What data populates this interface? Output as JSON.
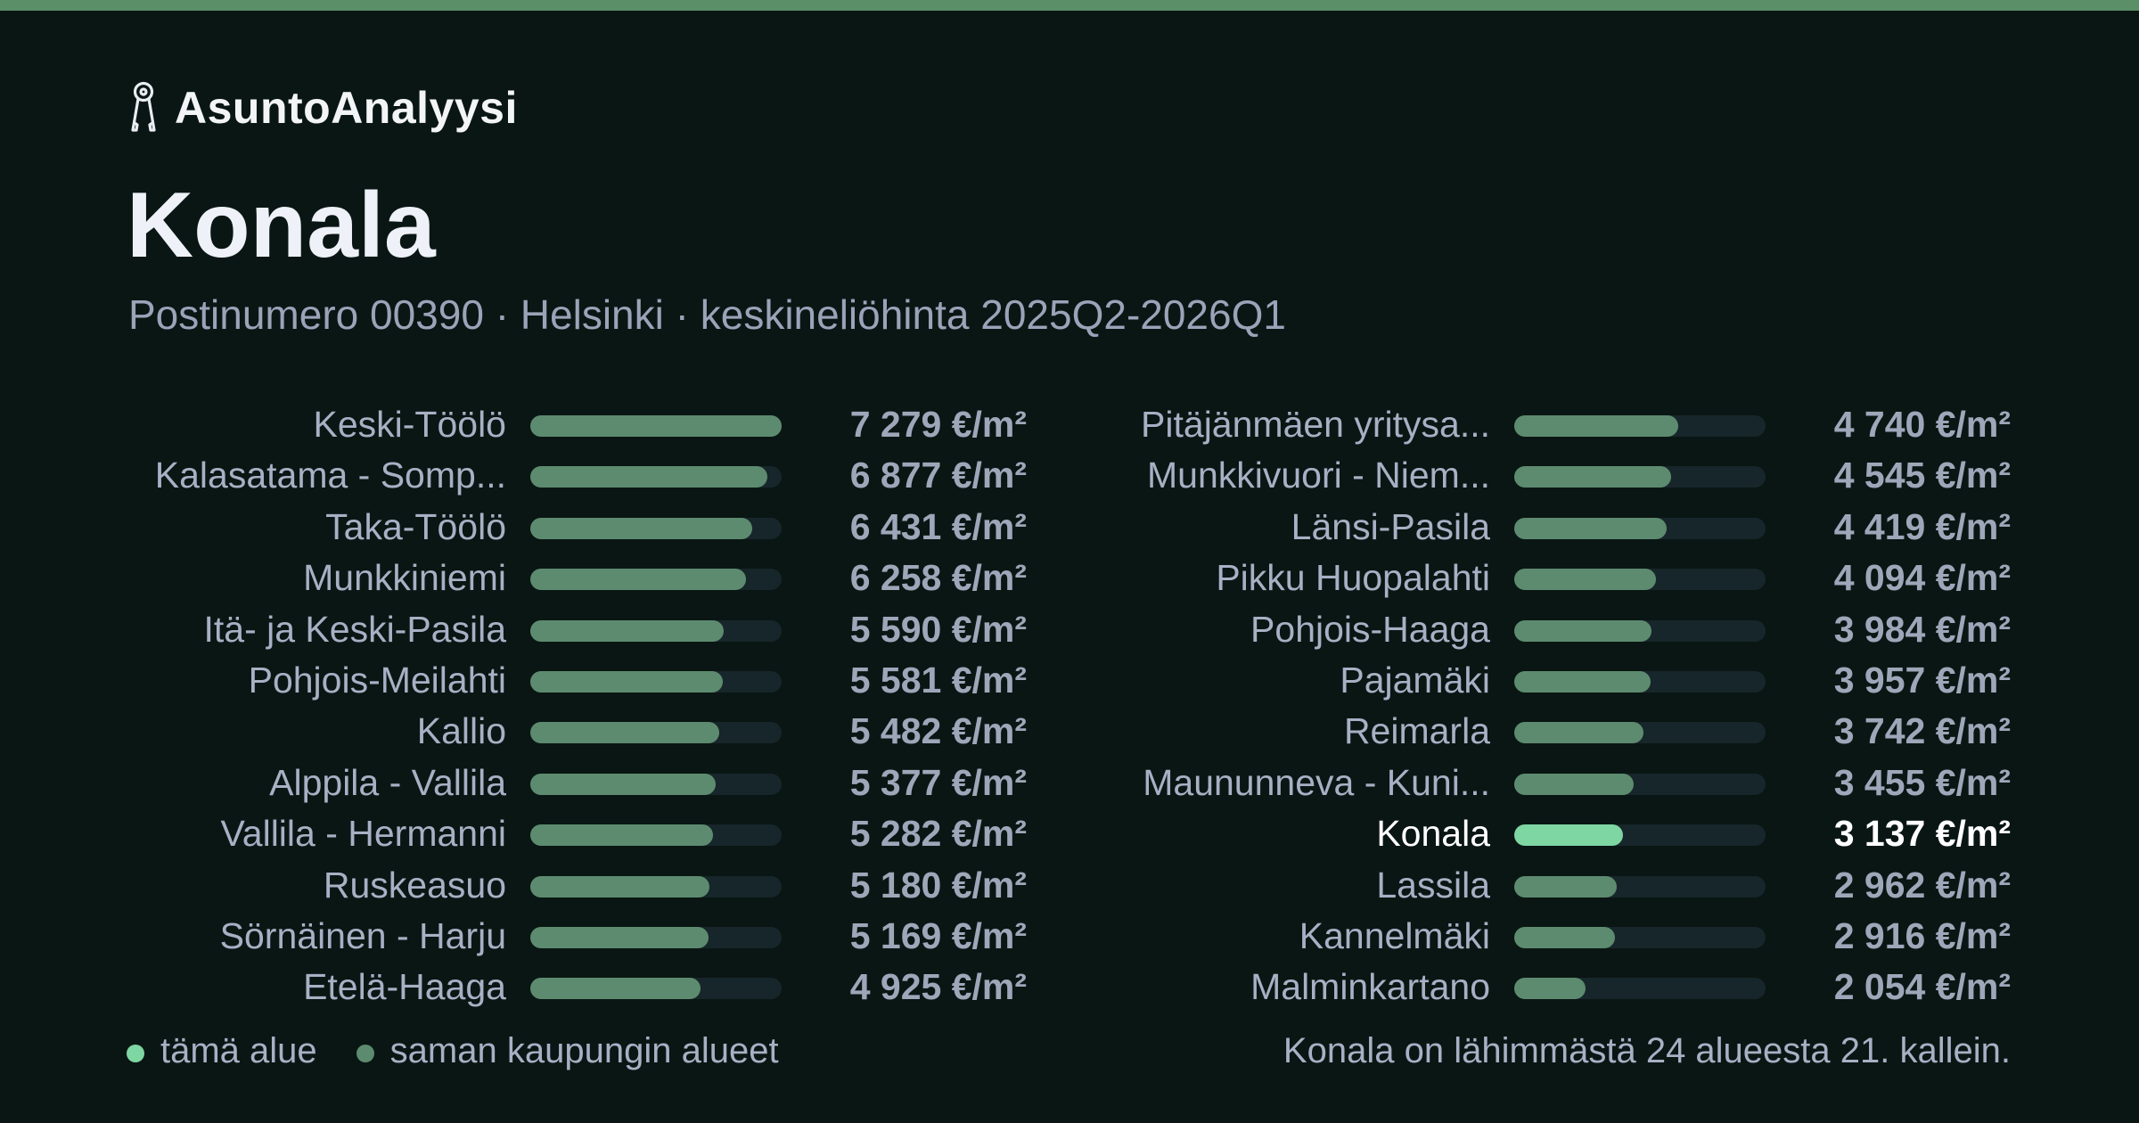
{
  "header": {
    "brand_name": "AsuntoAnalyysi",
    "brand_icon": "keys-icon",
    "title": "Konala",
    "subtitle": "Postinumero 00390 · Helsinki · keskineliöhinta 2025Q2-2026Q1"
  },
  "colors": {
    "background": "#0a1614",
    "top_stripe": "#5a8f67",
    "bar": "#5d8b6f",
    "bar_highlight": "#7ed6a2",
    "track": "#17262a"
  },
  "chart_data": {
    "type": "bar",
    "orientation": "horizontal",
    "unit": "€/m²",
    "max_value": 7279,
    "highlight": "Konala",
    "columns": [
      {
        "items": [
          {
            "label": "Keski-Töölö",
            "value": 7279,
            "value_text": "7 279 €/m²"
          },
          {
            "label": "Kalasatama - Somp...",
            "value": 6877,
            "value_text": "6 877 €/m²"
          },
          {
            "label": "Taka-Töölö",
            "value": 6431,
            "value_text": "6 431 €/m²"
          },
          {
            "label": "Munkkiniemi",
            "value": 6258,
            "value_text": "6 258 €/m²"
          },
          {
            "label": "Itä- ja Keski-Pasila",
            "value": 5590,
            "value_text": "5 590 €/m²"
          },
          {
            "label": "Pohjois-Meilahti",
            "value": 5581,
            "value_text": "5 581 €/m²"
          },
          {
            "label": "Kallio",
            "value": 5482,
            "value_text": "5 482 €/m²"
          },
          {
            "label": "Alppila - Vallila",
            "value": 5377,
            "value_text": "5 377 €/m²"
          },
          {
            "label": "Vallila - Hermanni",
            "value": 5282,
            "value_text": "5 282 €/m²"
          },
          {
            "label": "Ruskeasuo",
            "value": 5180,
            "value_text": "5 180 €/m²"
          },
          {
            "label": "Sörnäinen - Harju",
            "value": 5169,
            "value_text": "5 169 €/m²"
          },
          {
            "label": "Etelä-Haaga",
            "value": 4925,
            "value_text": "4 925 €/m²"
          }
        ]
      },
      {
        "items": [
          {
            "label": "Pitäjänmäen yritysa...",
            "value": 4740,
            "value_text": "4 740 €/m²"
          },
          {
            "label": "Munkkivuori - Niem...",
            "value": 4545,
            "value_text": "4 545 €/m²"
          },
          {
            "label": "Länsi-Pasila",
            "value": 4419,
            "value_text": "4 419 €/m²"
          },
          {
            "label": "Pikku Huopalahti",
            "value": 4094,
            "value_text": "4 094 €/m²"
          },
          {
            "label": "Pohjois-Haaga",
            "value": 3984,
            "value_text": "3 984 €/m²"
          },
          {
            "label": "Pajamäki",
            "value": 3957,
            "value_text": "3 957 €/m²"
          },
          {
            "label": "Reimarla",
            "value": 3742,
            "value_text": "3 742 €/m²"
          },
          {
            "label": "Maununneva - Kuni...",
            "value": 3455,
            "value_text": "3 455 €/m²"
          },
          {
            "label": "Konala",
            "value": 3137,
            "value_text": "3 137 €/m²",
            "current": true
          },
          {
            "label": "Lassila",
            "value": 2962,
            "value_text": "2 962 €/m²"
          },
          {
            "label": "Kannelmäki",
            "value": 2916,
            "value_text": "2 916 €/m²"
          },
          {
            "label": "Malminkartano",
            "value": 2054,
            "value_text": "2 054 €/m²"
          }
        ]
      }
    ]
  },
  "legend": [
    {
      "label": "tämä alue",
      "color": "#7ed6a2"
    },
    {
      "label": "saman kaupungin alueet",
      "color": "#5d8b6f"
    }
  ],
  "footnote": "Konala on lähimmästä 24 alueesta 21. kallein."
}
